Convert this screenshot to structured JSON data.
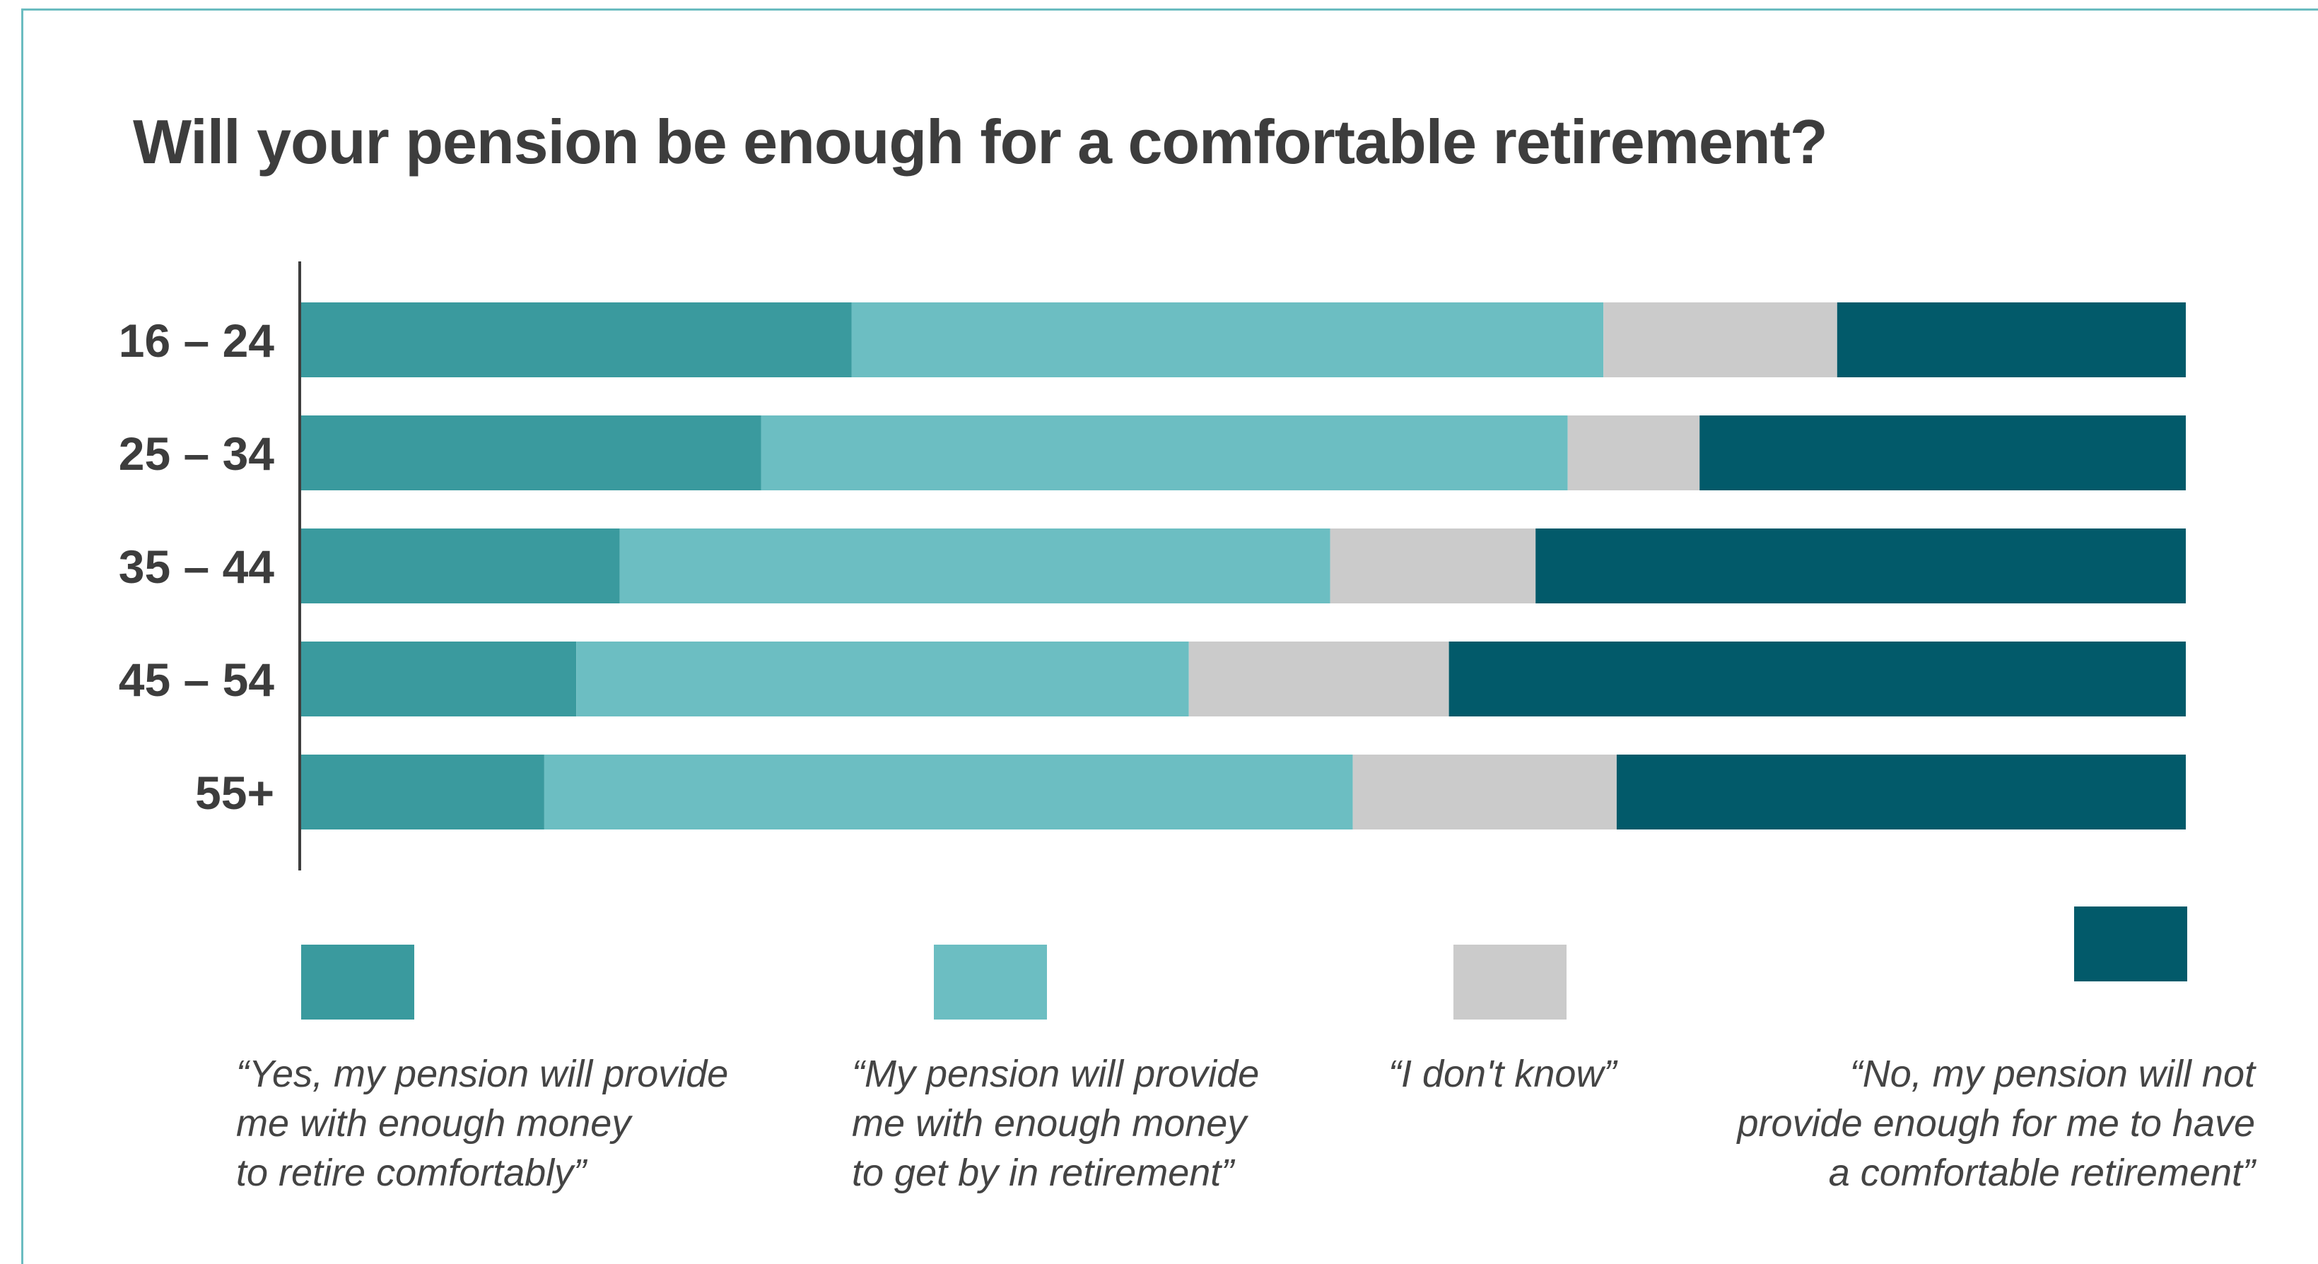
{
  "title": "Will your pension be enough for a comfortable retirement?",
  "chart_data": {
    "type": "bar",
    "orientation": "horizontal",
    "stacked": true,
    "title": "Will your pension be enough for a comfortable retirement?",
    "categories": [
      "16 – 24",
      "25 – 34",
      "35 – 44",
      "45 – 54",
      "55+"
    ],
    "xlim": [
      0,
      100
    ],
    "grid": false,
    "legend_position": "bottom",
    "series": [
      {
        "name": "“Yes, my pension will provide\nme with enough money\nto retire comfortably”",
        "color": "#3a9a9e",
        "values": [
          29.2,
          24.4,
          16.9,
          14.6,
          12.9
        ]
      },
      {
        "name": "“My pension will provide\nme with enough money\nto get by in retirement”",
        "color": "#6cbec2",
        "values": [
          39.9,
          42.8,
          37.7,
          32.5,
          42.9
        ]
      },
      {
        "name": "“I don't know”",
        "color": "#cbcbcb",
        "values": [
          12.4,
          7.0,
          10.9,
          13.8,
          14.0
        ]
      },
      {
        "name": "“No, my pension will not\nprovide enough for me to have\na comfortable retirement”",
        "color": "#025a6a",
        "values": [
          18.5,
          25.8,
          34.5,
          39.1,
          30.2
        ]
      }
    ]
  }
}
